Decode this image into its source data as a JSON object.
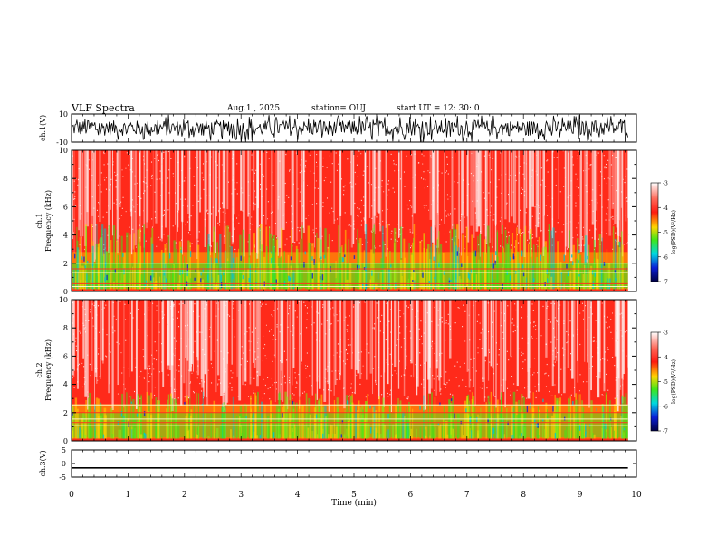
{
  "header": {
    "title": "VLF Spectra",
    "date": "Aug.1 , 2025",
    "station": "station= OUJ",
    "start": "start UT = 12: 30: 0"
  },
  "chart_data": [
    {
      "id": "ch1-waveform",
      "type": "line",
      "ylabel": "ch.1(V)",
      "ylim": [
        -10,
        10
      ],
      "yticks": [
        "10",
        "-10"
      ],
      "description_level": "dense oscillating waveform spanning about -10 to 10 V"
    },
    {
      "id": "ch1-spectrogram",
      "type": "heatmap",
      "ylabel": "ch.1",
      "ylabel2": "Frequency (kHz)",
      "ylim": [
        0,
        10
      ],
      "yticks": [
        "0",
        "2",
        "4",
        "6",
        "8",
        "10"
      ],
      "colorbar": {
        "label": "log(PSD)(V²/Hz)",
        "range": [
          -7,
          -3
        ],
        "ticks": [
          "-3",
          "-4",
          "-5",
          "-6",
          "-7"
        ]
      }
    },
    {
      "id": "ch2-spectrogram",
      "type": "heatmap",
      "ylabel": "ch.2",
      "ylabel2": "Frequency (kHz)",
      "ylim": [
        0,
        10
      ],
      "yticks": [
        "0",
        "2",
        "4",
        "6",
        "8",
        "10"
      ],
      "colorbar": {
        "label": "log(PSD)(V²/Hz)",
        "range": [
          -7,
          -3
        ],
        "ticks": [
          "-3",
          "-4",
          "-5",
          "-6",
          "-7"
        ]
      }
    },
    {
      "id": "ch3-waveform",
      "type": "line",
      "ylabel": "ch.3(V)",
      "ylim": [
        -5,
        5
      ],
      "yticks": [
        "5",
        "0",
        "-5"
      ],
      "level": -1.6
    }
  ],
  "xaxis": {
    "label": "Time (min)",
    "range": [
      0,
      10
    ],
    "ticks": [
      "0",
      "1",
      "2",
      "3",
      "4",
      "5",
      "6",
      "7",
      "8",
      "9",
      "10"
    ],
    "data_end": 9.85
  },
  "colors": {
    "red": "#ff2a1a",
    "white": "#ffffff",
    "yellow": "#ffd600",
    "green": "#3ee61a",
    "cyan": "#00c8d0",
    "blue": "#0a1fd8",
    "black": "#000000"
  }
}
